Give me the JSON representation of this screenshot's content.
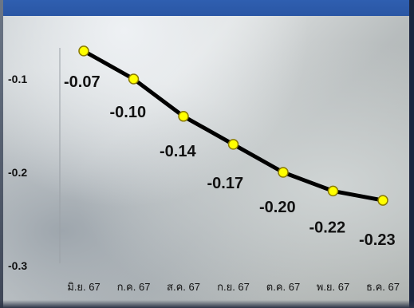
{
  "chart_data": {
    "type": "line",
    "categories": [
      "มิ.ย. 67",
      "ก.ค. 67",
      "ส.ค. 67",
      "ก.ย. 67",
      "ต.ค. 67",
      "พ.ย. 67",
      "ธ.ค. 67"
    ],
    "series": [
      {
        "values": [
          -0.07,
          -0.1,
          -0.14,
          -0.17,
          -0.2,
          -0.22,
          -0.23
        ]
      }
    ],
    "data_labels": [
      "-0.07",
      "-0.10",
      "-0.14",
      "-0.17",
      "-0.20",
      "-0.22",
      "-0.23"
    ],
    "y_ticks": [
      "-0.1",
      "-0.2",
      "-0.3"
    ],
    "y_tick_values": [
      -0.1,
      -0.2,
      -0.3
    ],
    "ylim": [
      -0.3,
      -0.05
    ],
    "title": "",
    "xlabel": "",
    "ylabel": "",
    "grid": false,
    "colors": {
      "line": "#000000",
      "marker_fill": "#ffff00",
      "marker_stroke": "#8a7a00"
    }
  }
}
